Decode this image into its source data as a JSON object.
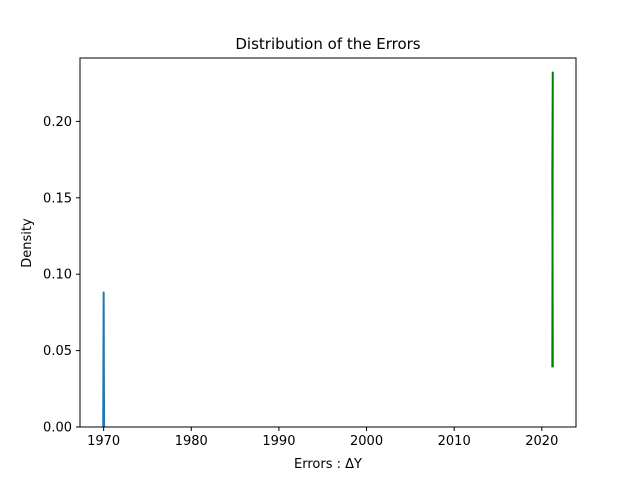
{
  "chart_data": {
    "type": "line",
    "title": "Distribution of the Errors",
    "xlabel": "Errors : ΔY",
    "ylabel": "Density",
    "xlim": [
      1967.3,
      2023.9
    ],
    "ylim": [
      0.0,
      0.2415
    ],
    "x_ticks": [
      1970,
      1980,
      1990,
      2000,
      2010,
      2020
    ],
    "x_tick_labels": [
      "1970",
      "1980",
      "1990",
      "2000",
      "2010",
      "2020"
    ],
    "y_ticks": [
      0.0,
      0.05,
      0.1,
      0.15,
      0.2
    ],
    "y_tick_labels": [
      "0.00",
      "0.05",
      "0.10",
      "0.15",
      "0.20"
    ],
    "grid": false,
    "legend": "none",
    "series": [
      {
        "color": "#1f77b4",
        "points": [
          [
            1969.95,
            0.0
          ],
          [
            1970.0,
            0.088
          ],
          [
            1970.02,
            0.04
          ],
          [
            1970.05,
            0.0
          ]
        ]
      },
      {
        "color": "#008000",
        "points": [
          [
            2021.2,
            0.039
          ],
          [
            2021.25,
            0.232
          ],
          [
            2021.2,
            0.165
          ],
          [
            2021.25,
            0.039
          ]
        ]
      }
    ]
  }
}
